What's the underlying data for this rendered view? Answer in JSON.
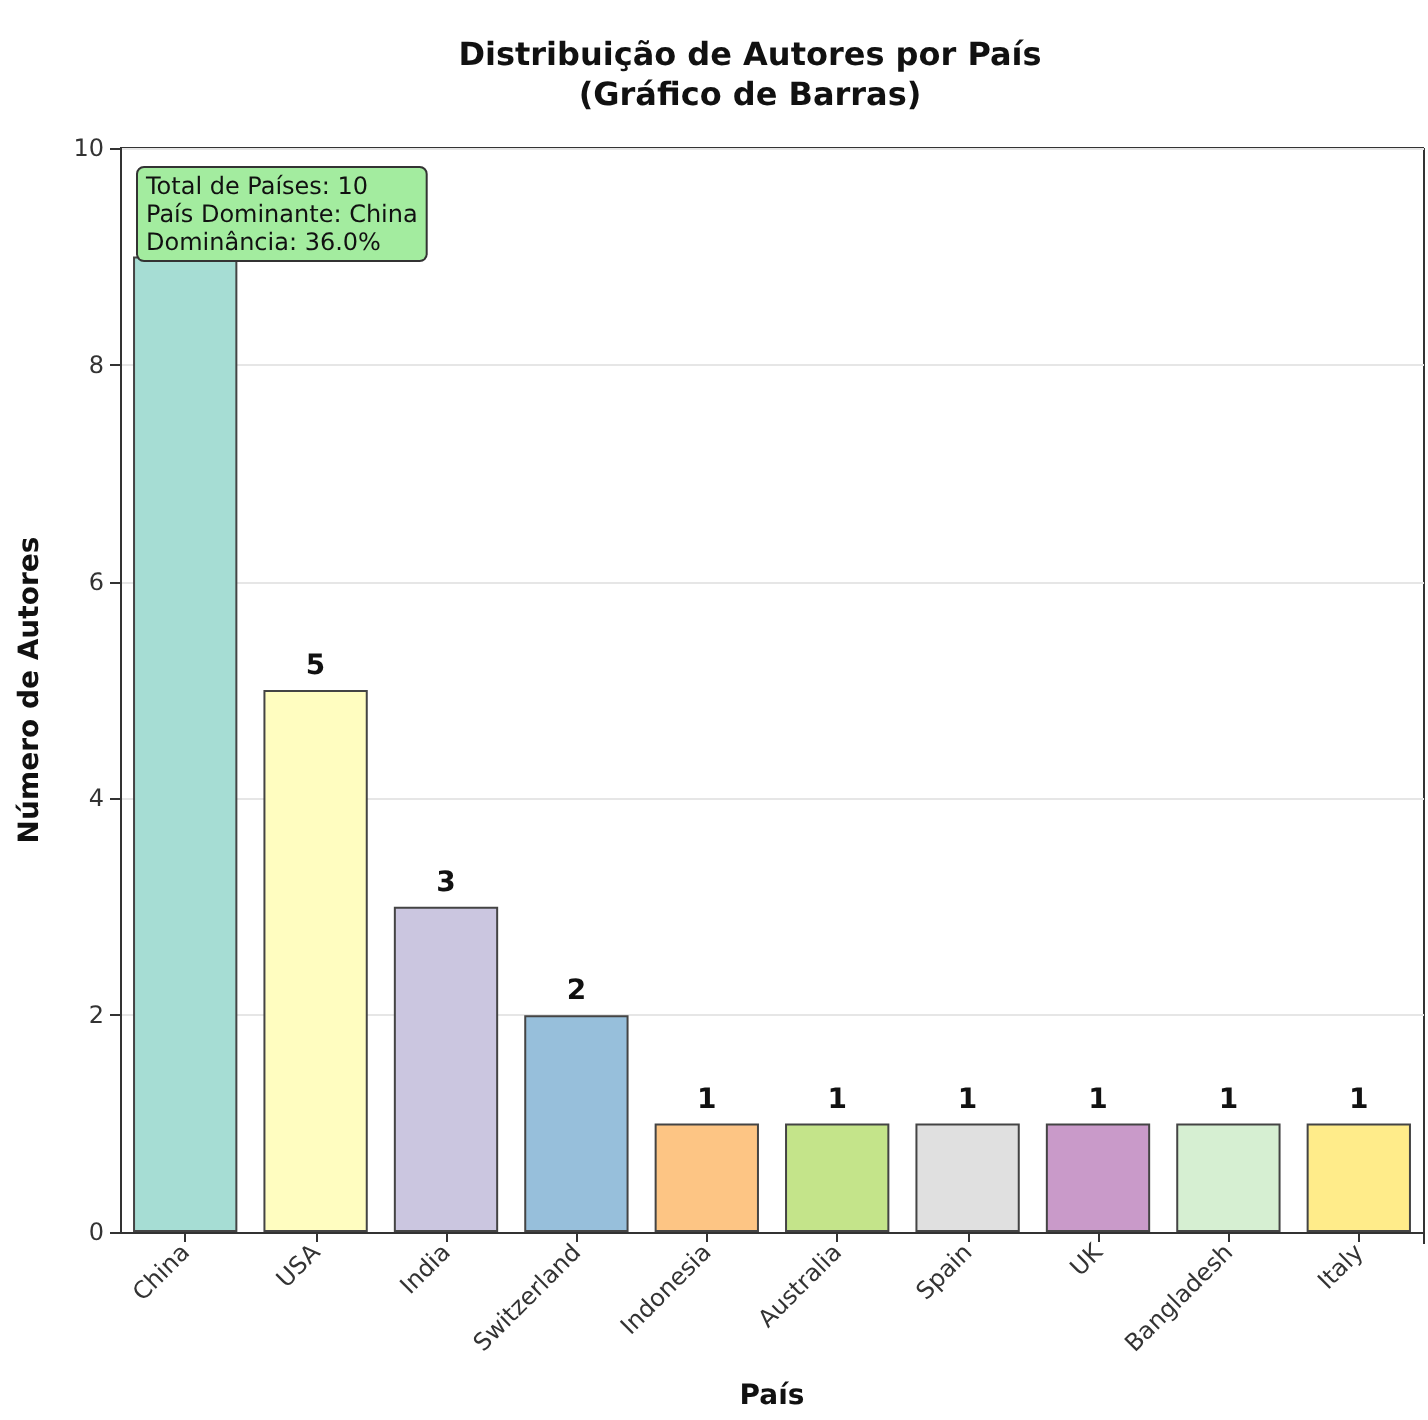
{
  "chart_data": {
    "type": "bar",
    "title": "Distribuição de Autores por País\n(Gráfico de Barras)",
    "xlabel": "País",
    "ylabel": "Número de Autores",
    "categories": [
      "China",
      "USA",
      "India",
      "Switzerland",
      "Indonesia",
      "Australia",
      "Spain",
      "UK",
      "Bangladesh",
      "Italy"
    ],
    "values": [
      9,
      5,
      3,
      2,
      1,
      1,
      1,
      1,
      1,
      1
    ],
    "value_labels": [
      null,
      "5",
      "3",
      "2",
      "1",
      "1",
      "1",
      "1",
      "1",
      "1"
    ],
    "colors": [
      "#a6ddd4",
      "#fffdc0",
      "#cbc6e0",
      "#97bfdb",
      "#fdc584",
      "#c4e48a",
      "#e0e0e0",
      "#c99ac9",
      "#d6efd2",
      "#ffec8a"
    ],
    "ylim": [
      0,
      10
    ],
    "yticks": [
      0,
      2,
      4,
      6,
      8,
      10
    ],
    "grid": "y",
    "annotations": [
      "Total de Países: 10\nPaís Dominante: China\nDominância: 36.0%"
    ]
  }
}
